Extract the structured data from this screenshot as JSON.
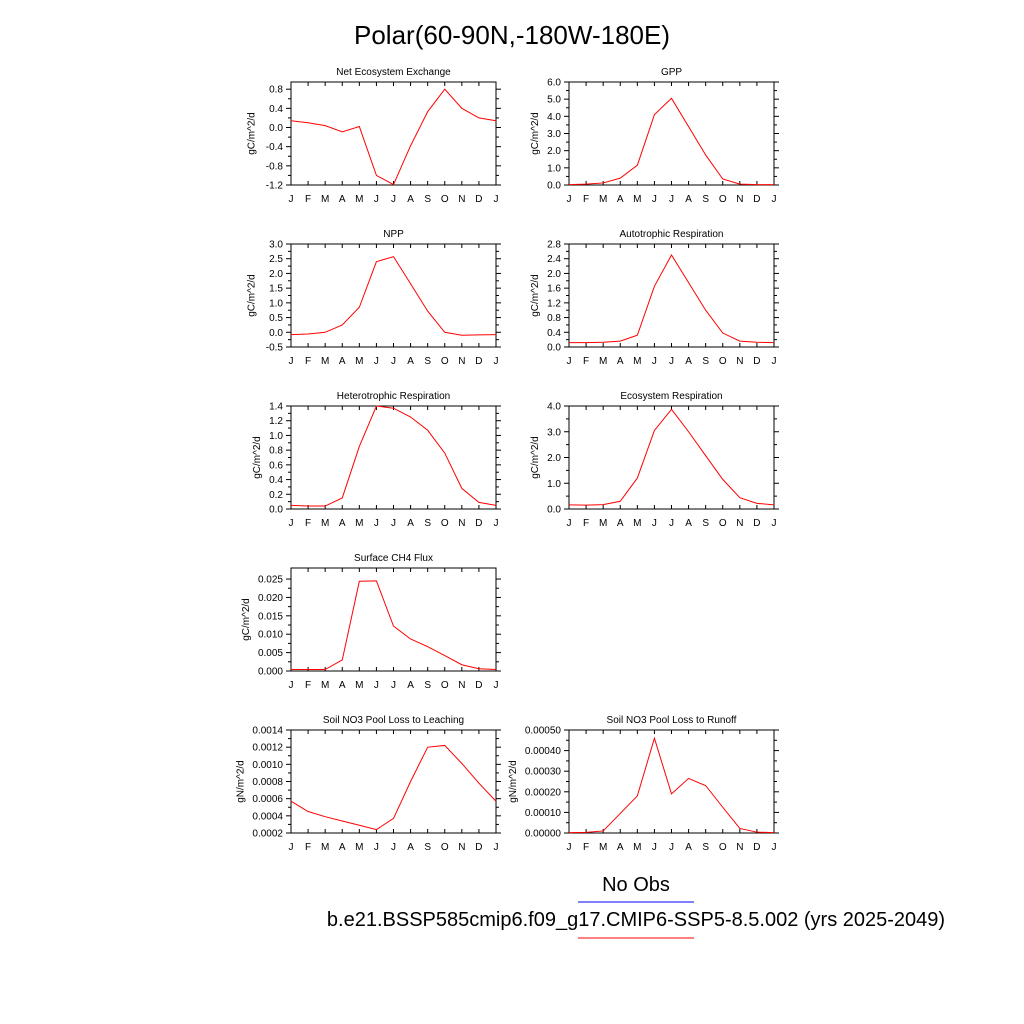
{
  "page_title": "Polar(60-90N,-180W-180E)",
  "legend": {
    "entries": [
      {
        "label": "No Obs",
        "color": "#0000ff"
      },
      {
        "label": "b.e21.BSSP585cmip6.f09_g17.CMIP6-SSP5-8.5.002 (yrs 2025-2049)",
        "color": "#ff0000"
      }
    ]
  },
  "chart_data": [
    {
      "type": "line",
      "title": "Net Ecosystem Exchange",
      "ylabel": "gC/m^2/d",
      "x": [
        "J",
        "F",
        "M",
        "A",
        "M",
        "J",
        "J",
        "A",
        "S",
        "O",
        "N",
        "D",
        "J"
      ],
      "ylim": [
        -1.2,
        0.95
      ],
      "yticks": [
        -1.2,
        -0.8,
        -0.4,
        0.0,
        0.4,
        0.8
      ],
      "ytick_labels": [
        "-1.2",
        "-0.8",
        "-0.4",
        "0.0",
        "0.4",
        "0.8"
      ],
      "series": [
        {
          "color": "#ff0000",
          "values": [
            0.14,
            0.1,
            0.04,
            -0.09,
            0.02,
            -1.0,
            -1.19,
            -0.38,
            0.33,
            0.8,
            0.4,
            0.2,
            0.14
          ]
        }
      ]
    },
    {
      "type": "line",
      "title": "GPP",
      "ylabel": "gC/m^2/d",
      "x": [
        "J",
        "F",
        "M",
        "A",
        "M",
        "J",
        "J",
        "A",
        "S",
        "O",
        "N",
        "D",
        "J"
      ],
      "ylim": [
        0,
        6.0
      ],
      "yticks": [
        0,
        1,
        2,
        3,
        4,
        5,
        6
      ],
      "ytick_labels": [
        "0.0",
        "1.0",
        "2.0",
        "3.0",
        "4.0",
        "5.0",
        "6.0"
      ],
      "series": [
        {
          "color": "#ff0000",
          "values": [
            0.02,
            0.05,
            0.12,
            0.4,
            1.15,
            4.1,
            5.05,
            3.4,
            1.75,
            0.35,
            0.05,
            0.02,
            0.02
          ]
        }
      ]
    },
    {
      "type": "line",
      "title": "NPP",
      "ylabel": "gC/m^2/d",
      "x": [
        "J",
        "F",
        "M",
        "A",
        "M",
        "J",
        "J",
        "A",
        "S",
        "O",
        "N",
        "D",
        "J"
      ],
      "ylim": [
        -0.5,
        3.0
      ],
      "yticks": [
        -0.5,
        0.0,
        0.5,
        1.0,
        1.5,
        2.0,
        2.5,
        3.0
      ],
      "ytick_labels": [
        "-0.5",
        "0.0",
        "0.5",
        "1.0",
        "1.5",
        "2.0",
        "2.5",
        "3.0"
      ],
      "series": [
        {
          "color": "#ff0000",
          "values": [
            -0.08,
            -0.06,
            0.0,
            0.25,
            0.85,
            2.4,
            2.57,
            1.65,
            0.72,
            0.0,
            -0.1,
            -0.09,
            -0.08
          ]
        }
      ]
    },
    {
      "type": "line",
      "title": "Autotrophic Respiration",
      "ylabel": "gC/m^2/d",
      "x": [
        "J",
        "F",
        "M",
        "A",
        "M",
        "J",
        "J",
        "A",
        "S",
        "O",
        "N",
        "D",
        "J"
      ],
      "ylim": [
        0,
        2.8
      ],
      "yticks": [
        0,
        0.4,
        0.8,
        1.2,
        1.6,
        2.0,
        2.4,
        2.8
      ],
      "ytick_labels": [
        "0.0",
        "0.4",
        "0.8",
        "1.2",
        "1.6",
        "2.0",
        "2.4",
        "2.8"
      ],
      "series": [
        {
          "color": "#ff0000",
          "values": [
            0.12,
            0.12,
            0.13,
            0.16,
            0.32,
            1.65,
            2.5,
            1.75,
            1.0,
            0.38,
            0.16,
            0.13,
            0.12
          ]
        }
      ]
    },
    {
      "type": "line",
      "title": "Heterotrophic Respiration",
      "ylabel": "gC/m^2/d",
      "x": [
        "J",
        "F",
        "M",
        "A",
        "M",
        "J",
        "J",
        "A",
        "S",
        "O",
        "N",
        "D",
        "J"
      ],
      "ylim": [
        0,
        1.4
      ],
      "yticks": [
        0,
        0.2,
        0.4,
        0.6,
        0.8,
        1.0,
        1.2,
        1.4
      ],
      "ytick_labels": [
        "0.0",
        "0.2",
        "0.4",
        "0.6",
        "0.8",
        "1.0",
        "1.2",
        "1.4"
      ],
      "series": [
        {
          "color": "#ff0000",
          "values": [
            0.05,
            0.04,
            0.04,
            0.15,
            0.85,
            1.4,
            1.37,
            1.25,
            1.07,
            0.76,
            0.28,
            0.09,
            0.05
          ]
        }
      ]
    },
    {
      "type": "line",
      "title": "Ecosystem Respiration",
      "ylabel": "gC/m^2/d",
      "x": [
        "J",
        "F",
        "M",
        "A",
        "M",
        "J",
        "J",
        "A",
        "S",
        "O",
        "N",
        "D",
        "J"
      ],
      "ylim": [
        0,
        4.0
      ],
      "yticks": [
        0,
        1,
        2,
        3,
        4
      ],
      "ytick_labels": [
        "0.0",
        "1.0",
        "2.0",
        "3.0",
        "4.0"
      ],
      "series": [
        {
          "color": "#ff0000",
          "values": [
            0.16,
            0.15,
            0.17,
            0.3,
            1.2,
            3.05,
            3.87,
            3.0,
            2.07,
            1.15,
            0.44,
            0.22,
            0.16
          ]
        }
      ]
    },
    {
      "type": "line",
      "title": "Surface CH4 Flux",
      "ylabel": "gC/m^2/d",
      "x": [
        "J",
        "F",
        "M",
        "A",
        "M",
        "J",
        "J",
        "A",
        "S",
        "O",
        "N",
        "D",
        "J"
      ],
      "ylim": [
        0,
        0.028
      ],
      "yticks": [
        0,
        0.005,
        0.01,
        0.015,
        0.02,
        0.025
      ],
      "ytick_labels": [
        "0.000",
        "0.005",
        "0.010",
        "0.015",
        "0.020",
        "0.025"
      ],
      "series": [
        {
          "color": "#ff0000",
          "values": [
            0.0004,
            0.0004,
            0.0004,
            0.003,
            0.0244,
            0.0245,
            0.0122,
            0.0087,
            0.0066,
            0.0042,
            0.0017,
            0.0006,
            0.0004
          ]
        }
      ]
    },
    {
      "type": "line",
      "title": "Soil NO3 Pool Loss to Leaching",
      "ylabel": "gN/m^2/d",
      "x": [
        "J",
        "F",
        "M",
        "A",
        "M",
        "J",
        "J",
        "A",
        "S",
        "O",
        "N",
        "D",
        "J"
      ],
      "ylim": [
        0.0002,
        0.0014
      ],
      "yticks": [
        0.0002,
        0.0004,
        0.0006,
        0.0008,
        0.001,
        0.0012,
        0.0014
      ],
      "ytick_labels": [
        "0.0002",
        "0.0004",
        "0.0006",
        "0.0008",
        "0.0010",
        "0.0012",
        "0.0014"
      ],
      "series": [
        {
          "color": "#ff0000",
          "values": [
            0.00057,
            0.00045,
            0.00039,
            0.00034,
            0.00029,
            0.00024,
            0.00037,
            0.0008,
            0.0012,
            0.00122,
            0.00101,
            0.00078,
            0.00057
          ]
        }
      ]
    },
    {
      "type": "line",
      "title": "Soil NO3 Pool Loss to Runoff",
      "ylabel": "gN/m^2/d",
      "x": [
        "J",
        "F",
        "M",
        "A",
        "M",
        "J",
        "J",
        "A",
        "S",
        "O",
        "N",
        "D",
        "J"
      ],
      "ylim": [
        0,
        0.0005
      ],
      "yticks": [
        0,
        0.0001,
        0.0002,
        0.0003,
        0.0004,
        0.0005
      ],
      "ytick_labels": [
        "0.00000",
        "0.00010",
        "0.00020",
        "0.00030",
        "0.00040",
        "0.00050"
      ],
      "series": [
        {
          "color": "#ff0000",
          "values": [
            2e-06,
            3e-06,
            1e-05,
            9.5e-05,
            0.00018,
            0.00046,
            0.00019,
            0.000265,
            0.00023,
            0.000125,
            2.2e-05,
            4e-06,
            2e-06
          ]
        }
      ]
    }
  ]
}
